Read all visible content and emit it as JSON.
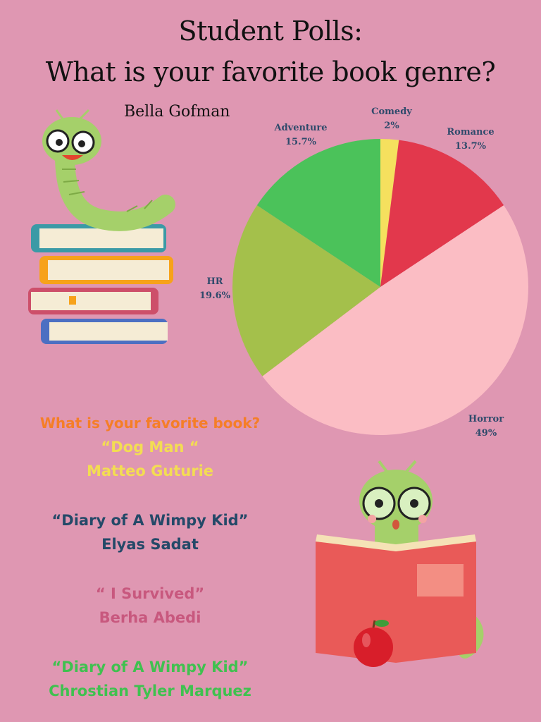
{
  "header": {
    "title_line1": "Student Polls:",
    "title_line2": "What is your favorite book genre?",
    "author": "Bella Gofman"
  },
  "chart_data": {
    "type": "pie",
    "categories": [
      "Comedy",
      "Romance",
      "Horror",
      "HR",
      "Adventure"
    ],
    "values": [
      2,
      13.7,
      49,
      19.6,
      15.7
    ],
    "value_labels": [
      "2%",
      "13.7%",
      "49%",
      "19.6%",
      "15.7%"
    ],
    "colors": [
      "#f5e05e",
      "#e2384c",
      "#fbbdc4",
      "#a4c04b",
      "#4bc25a"
    ]
  },
  "favorite_books": {
    "question": "What is your favorite book?",
    "answers": [
      {
        "title": "“Dog Man “",
        "name": "Matteo Guturie",
        "color": "#f3dd52"
      },
      {
        "title": "“Diary of A Wimpy Kid”",
        "name": "Elyas Sadat",
        "color": "#244968"
      },
      {
        "title": "“ I Survived”",
        "name": "Berha Abedi",
        "color": "#c8587e"
      },
      {
        "title": "“Diary of A Wimpy Kid”",
        "name": "Chrostian Tyler Marquez",
        "color": "#3fc14f"
      }
    ]
  },
  "illustrations": {
    "top_left": "bookworm-on-books-icon",
    "bottom_right": "bookworm-reading-icon"
  }
}
